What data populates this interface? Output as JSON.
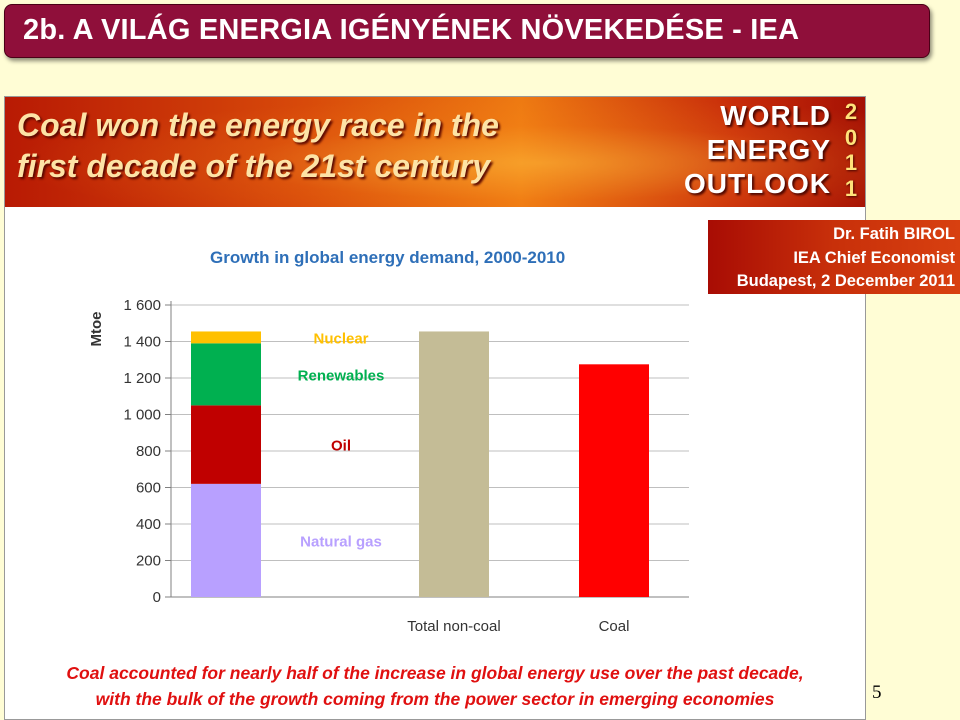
{
  "slide_title": "2b. A VILÁG ENERGIA IGÉNYÉNEK NÖVEKEDÉSE - IEA",
  "banner": {
    "heading_line1": "Coal won the energy race in the",
    "heading_line2": "first decade of the 21st century",
    "logo_words": [
      "WORLD",
      "ENERGY",
      "OUTLOOK"
    ],
    "logo_year_digits": [
      "2",
      "0",
      "1",
      "1"
    ]
  },
  "author": {
    "line1": "Dr. Fatih BIROL",
    "line2": "IEA Chief Economist",
    "line3": "Budapest, 2 December 2011"
  },
  "caption": {
    "line1": "Coal accounted for nearly half of the increase in global energy use over the past decade,",
    "line2": "with the bulk of the growth coming from the power sector in emerging economies"
  },
  "page_number": "5",
  "chart_data": {
    "type": "bar",
    "stacked": true,
    "title": "Growth in global energy demand, 2000-2010",
    "ylabel": "Mtoe",
    "xlabel": "",
    "ylim": [
      0,
      1600
    ],
    "yticks": [
      0,
      200,
      400,
      600,
      800,
      1000,
      1200,
      1400,
      1600
    ],
    "ytick_labels": [
      "0",
      "200",
      "400",
      "600",
      "800",
      "1 000",
      "1 200",
      "1 400",
      "1 600"
    ],
    "grid": true,
    "categories": [
      "",
      "Total non-coal",
      "Coal"
    ],
    "segments": [
      {
        "name": "Natural gas",
        "value": 620,
        "color": "#b8a0ff",
        "label_color": "#b8a0ff"
      },
      {
        "name": "Oil",
        "value": 430,
        "color": "#c00000",
        "label_color": "#c00000"
      },
      {
        "name": "Renewables",
        "value": 340,
        "color": "#00b050",
        "label_color": "#00b050"
      },
      {
        "name": "Nuclear",
        "value": 65,
        "color": "#ffc000",
        "label_color": "#ffc000"
      }
    ],
    "bars": [
      {
        "category": "Total non-coal",
        "value": 1455,
        "color": "#c4bc96"
      },
      {
        "category": "Coal",
        "value": 1275,
        "color": "#ff0000"
      }
    ]
  }
}
